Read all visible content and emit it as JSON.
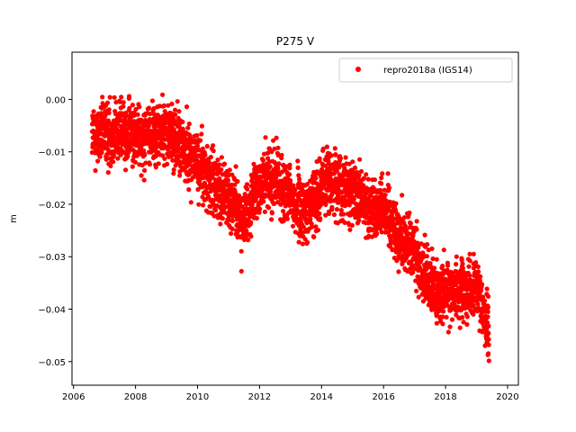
{
  "chart_data": {
    "type": "scatter",
    "title": "P275 V",
    "xlabel": "",
    "ylabel": "m",
    "xlim": [
      2005.95,
      2020.35
    ],
    "ylim": [
      -0.0545,
      0.009
    ],
    "x_ticks": [
      2006,
      2008,
      2010,
      2012,
      2014,
      2016,
      2018,
      2020
    ],
    "x_tick_labels": [
      "2006",
      "2008",
      "2010",
      "2012",
      "2014",
      "2016",
      "2018",
      "2020"
    ],
    "y_ticks": [
      0.0,
      -0.01,
      -0.02,
      -0.03,
      -0.04,
      -0.05
    ],
    "y_tick_labels": [
      "0.00",
      "−0.01",
      "−0.02",
      "−0.03",
      "−0.04",
      "−0.05"
    ],
    "grid": false,
    "legend_position": "top-right",
    "series": [
      {
        "name": "repro2018a (IGS14)",
        "color": "#ff0000",
        "marker": "circle",
        "trend_x": [
          2006.6,
          2007.0,
          2007.5,
          2008.0,
          2008.5,
          2009.0,
          2009.5,
          2010.0,
          2010.5,
          2011.0,
          2011.5,
          2012.0,
          2012.5,
          2013.0,
          2013.5,
          2014.0,
          2014.5,
          2015.0,
          2015.5,
          2016.0,
          2016.5,
          2017.0,
          2017.5,
          2018.0,
          2018.5,
          2019.0,
          2019.4
        ],
        "trend_y": [
          -0.007,
          -0.0065,
          -0.006,
          -0.007,
          -0.0065,
          -0.006,
          -0.009,
          -0.012,
          -0.016,
          -0.018,
          -0.024,
          -0.016,
          -0.015,
          -0.019,
          -0.022,
          -0.016,
          -0.015,
          -0.018,
          -0.021,
          -0.02,
          -0.026,
          -0.029,
          -0.036,
          -0.037,
          -0.036,
          -0.036,
          -0.044
        ],
        "y_min": -0.052,
        "y_max": 0.006
      }
    ]
  }
}
